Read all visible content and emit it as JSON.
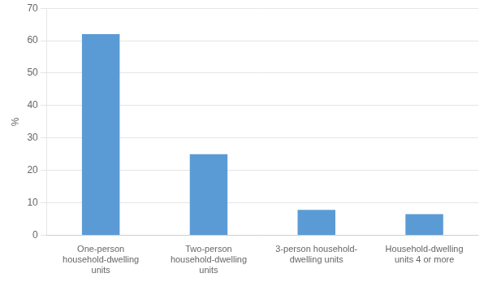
{
  "chart_data": {
    "type": "bar",
    "categories": [
      "One-person\nhousehold-dwelling\nunits",
      "Two-person\nhousehold-dwelling\nunits",
      "3-person household-\ndwelling units",
      "Household-dwelling\nunits 4 or more"
    ],
    "values": [
      62,
      25,
      7.8,
      6.5
    ],
    "color": "#5B9BD5",
    "ylabel": "%",
    "ylim": [
      0,
      70
    ],
    "yticks": [
      0,
      10,
      20,
      30,
      40,
      50,
      60,
      70
    ],
    "grid": true
  }
}
